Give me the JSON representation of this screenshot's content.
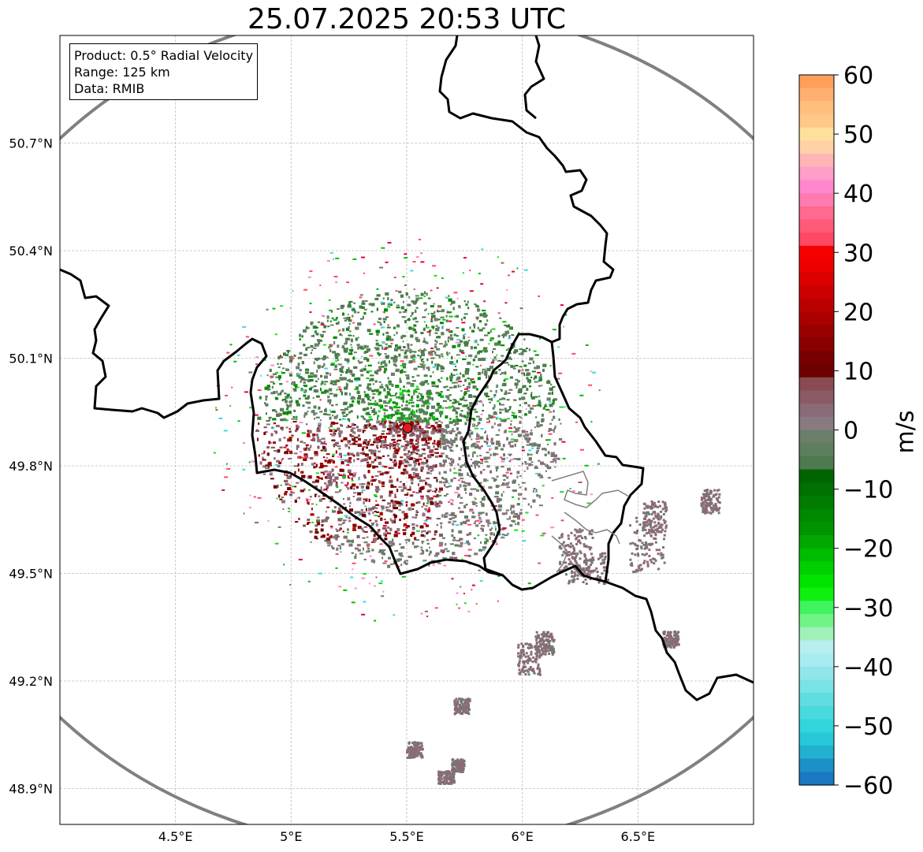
{
  "title": "25.07.2025 20:53 UTC",
  "info_box": {
    "product": "Product: 0.5° Radial Velocity",
    "range": "Range: 125 km",
    "source": "Data: RMIB"
  },
  "map": {
    "lon_range": [
      4.0,
      7.0
    ],
    "lat_range": [
      48.8,
      51.0
    ],
    "lon_ticks": [
      {
        "lon": 4.5,
        "label": "4.5°E"
      },
      {
        "lon": 5.0,
        "label": "5°E"
      },
      {
        "lon": 5.5,
        "label": "5.5°E"
      },
      {
        "lon": 6.0,
        "label": "6°E"
      },
      {
        "lon": 6.5,
        "label": "6.5°E"
      }
    ],
    "lat_ticks": [
      {
        "lat": 50.7,
        "label": "50.7°N"
      },
      {
        "lat": 50.4,
        "label": "50.4°N"
      },
      {
        "lat": 50.1,
        "label": "50.1°N"
      },
      {
        "lat": 49.8,
        "label": "49.8°N"
      },
      {
        "lat": 49.5,
        "label": "49.5°N"
      },
      {
        "lat": 49.2,
        "label": "49.2°N"
      },
      {
        "lat": 48.9,
        "label": "48.9°N"
      }
    ],
    "gridlines": true,
    "radar_site": {
      "lon": 5.505,
      "lat": 49.915,
      "marker_color": "#e31a1c"
    },
    "range_ring_color": "#808080",
    "border_color": "#000000"
  },
  "colorbar": {
    "label": "m/s",
    "vmin": -60,
    "vmax": 60,
    "ticks": [
      60,
      50,
      40,
      30,
      20,
      10,
      0,
      -10,
      -20,
      -30,
      -40,
      -50,
      -60
    ],
    "tick_labels": [
      "60",
      "50",
      "40",
      "30",
      "20",
      "10",
      "0",
      "−10",
      "−20",
      "−30",
      "−40",
      "−50",
      "−60"
    ],
    "colors_top_to_bottom": [
      "#ff9f5a",
      "#ffb070",
      "#ffbe7c",
      "#ffc888",
      "#ffe09a",
      "#ffd1a8",
      "#ffb5b5",
      "#ff9ec8",
      "#ff88cc",
      "#ff7ab0",
      "#ff6a8e",
      "#ff5a78",
      "#ff4864",
      "#f70000",
      "#ee0000",
      "#dd0000",
      "#cc0000",
      "#bb0000",
      "#aa0000",
      "#990000",
      "#880000",
      "#770000",
      "#6d0000",
      "#8a4a52",
      "#8a5a66",
      "#8a6b78",
      "#8a7a80",
      "#6b7f6b",
      "#5e7f5e",
      "#4f7a4f",
      "#006400",
      "#007000",
      "#007c00",
      "#008800",
      "#009400",
      "#00a800",
      "#00bc00",
      "#00d000",
      "#00e400",
      "#10f010",
      "#40f460",
      "#70f488",
      "#a0f0b8",
      "#b8eef0",
      "#a8ebf0",
      "#90e6ea",
      "#78e2e6",
      "#60dde2",
      "#48dadf",
      "#30d6dc",
      "#28c8d8",
      "#22b0d0",
      "#1e90c8",
      "#1c78c0"
    ]
  }
}
